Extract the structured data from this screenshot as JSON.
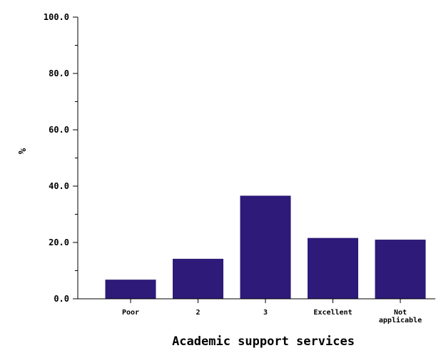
{
  "chart_data": {
    "type": "bar",
    "title": "",
    "xlabel": "Academic support services",
    "ylabel": "%",
    "categories": [
      "Poor",
      "2",
      "3",
      "Excellent",
      "Not applicable"
    ],
    "category_lines": [
      [
        "Poor"
      ],
      [
        "2"
      ],
      [
        "3"
      ],
      [
        "Excellent"
      ],
      [
        "Not",
        "applicable"
      ]
    ],
    "values": [
      6.8,
      14.2,
      36.6,
      21.6,
      21.0
    ],
    "ylim": [
      0,
      100
    ],
    "yticks": [
      "0.0",
      "20.0",
      "40.0",
      "60.0",
      "80.0",
      "100.0"
    ],
    "bar_color": "#2e1a78",
    "grid": false,
    "legend": "none"
  }
}
